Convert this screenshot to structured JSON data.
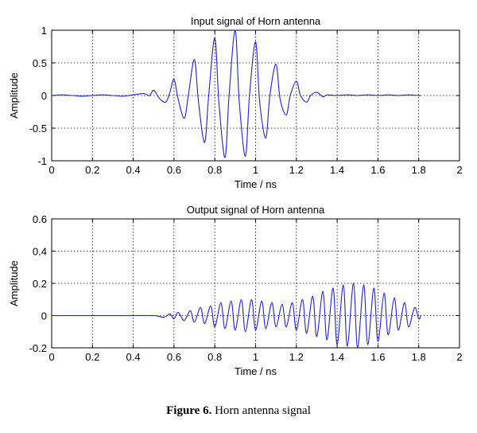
{
  "caption": {
    "label": "Figure 6.",
    "text": " Horn antenna signal"
  },
  "colors": {
    "line": "#2020d8",
    "grid": "#000000",
    "axis": "#000000"
  },
  "chart_data": [
    {
      "type": "line",
      "title": "Input signal of Horn antenna",
      "xlabel": "Time / ns",
      "ylabel": "Amplitude",
      "xlim": [
        0,
        2
      ],
      "ylim": [
        -1,
        1
      ],
      "xticks": [
        0,
        0.2,
        0.4,
        0.6,
        0.8,
        1,
        1.2,
        1.4,
        1.6,
        1.8,
        2
      ],
      "xtick_labels": [
        "0",
        "0.2",
        "0.4",
        "0.6",
        "0.8",
        "1",
        "1.2",
        "1.4",
        "1.6",
        "1.8",
        "2"
      ],
      "yticks": [
        -1,
        -0.5,
        0,
        0.5,
        1
      ],
      "ytick_labels": [
        "-1",
        "-0.5",
        "0",
        "0.5",
        "1"
      ],
      "grid": true,
      "series": [
        {
          "x": [
            0,
            0.05,
            0.1,
            0.15,
            0.2,
            0.25,
            0.3,
            0.35,
            0.4,
            0.45,
            0.48,
            0.5,
            0.53,
            0.56,
            0.58,
            0.6,
            0.62,
            0.65,
            0.67,
            0.7,
            0.72,
            0.75,
            0.77,
            0.8,
            0.82,
            0.85,
            0.87,
            0.9,
            0.92,
            0.95,
            0.97,
            1,
            1.02,
            1.05,
            1.07,
            1.1,
            1.12,
            1.15,
            1.17,
            1.2,
            1.22,
            1.25,
            1.27,
            1.3,
            1.33,
            1.35,
            1.4,
            1.45,
            1.5,
            1.55,
            1.6,
            1.65,
            1.7,
            1.75,
            1.8,
            1.81
          ],
          "y": [
            0,
            0.01,
            0,
            -0.01,
            0,
            0.01,
            0,
            -0.01,
            0.01,
            0.03,
            0,
            0.08,
            -0.05,
            -0.1,
            0.05,
            0.25,
            -0.05,
            -0.35,
            0,
            0.55,
            -0.1,
            -0.72,
            0,
            0.88,
            -0.1,
            -0.95,
            0,
            1.0,
            -0.1,
            -0.93,
            0,
            0.82,
            -0.1,
            -0.65,
            0,
            0.48,
            -0.05,
            -0.3,
            0,
            0.22,
            0,
            -0.1,
            0,
            0.05,
            -0.02,
            0.01,
            0,
            0.01,
            0,
            0.01,
            0,
            0.01,
            0,
            0.01,
            0,
            0
          ]
        }
      ]
    },
    {
      "type": "line",
      "title": "Output signal of Horn antenna",
      "xlabel": "Time / ns",
      "ylabel": "Amplitude",
      "xlim": [
        0,
        2
      ],
      "ylim": [
        -0.2,
        0.6
      ],
      "xticks": [
        0,
        0.2,
        0.4,
        0.6,
        0.8,
        1,
        1.2,
        1.4,
        1.6,
        1.8,
        2
      ],
      "xtick_labels": [
        "0",
        "0.2",
        "0.4",
        "0.6",
        "0.8",
        "1",
        "1.2",
        "1.4",
        "1.6",
        "1.8",
        "2"
      ],
      "yticks": [
        -0.2,
        0,
        0.2,
        0.4,
        0.6
      ],
      "ytick_labels": [
        "-0.2",
        "0",
        "0.2",
        "0.4",
        "0.6"
      ],
      "grid": true,
      "series": [
        {
          "x": [
            0,
            0.1,
            0.2,
            0.3,
            0.4,
            0.5,
            0.55,
            0.58,
            0.6,
            0.62,
            0.65,
            0.68,
            0.7,
            0.73,
            0.75,
            0.78,
            0.8,
            0.83,
            0.85,
            0.88,
            0.9,
            0.93,
            0.95,
            0.98,
            1,
            1.03,
            1.05,
            1.08,
            1.1,
            1.13,
            1.15,
            1.18,
            1.2,
            1.23,
            1.25,
            1.28,
            1.3,
            1.33,
            1.35,
            1.38,
            1.4,
            1.43,
            1.45,
            1.48,
            1.5,
            1.53,
            1.55,
            1.58,
            1.6,
            1.63,
            1.65,
            1.68,
            1.7,
            1.73,
            1.75,
            1.78,
            1.8,
            1.81
          ],
          "y": [
            0,
            0,
            0,
            0,
            0,
            0,
            -0.01,
            0.01,
            -0.02,
            0.02,
            -0.03,
            0.03,
            -0.04,
            0.05,
            -0.05,
            0.06,
            -0.07,
            0.08,
            -0.08,
            0.09,
            -0.09,
            0.1,
            -0.1,
            0.1,
            -0.09,
            0.09,
            -0.08,
            0.08,
            -0.07,
            0.07,
            -0.07,
            0.08,
            -0.09,
            0.1,
            -0.11,
            0.12,
            -0.13,
            0.15,
            -0.15,
            0.17,
            -0.18,
            0.19,
            -0.19,
            0.2,
            -0.2,
            0.19,
            -0.18,
            0.17,
            -0.16,
            0.14,
            -0.12,
            0.11,
            -0.09,
            0.08,
            -0.07,
            0.05,
            -0.02,
            0
          ]
        }
      ]
    }
  ]
}
